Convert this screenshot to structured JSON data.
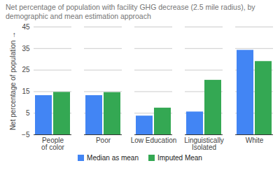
{
  "chart_data": {
    "type": "bar",
    "title": "Net percentage of population with facility GHG decrease (2.5 mile radius), by demographic and mean estimation approach",
    "y_label": "Net percentage of population",
    "categories": [
      "People of color",
      "Poor",
      "Low Education",
      "Linguistically Isolated",
      "White"
    ],
    "series": [
      {
        "name": "Median as mean",
        "color": "#4285f4",
        "values": [
          13.2,
          13.2,
          3.7,
          5.6,
          34.2
        ]
      },
      {
        "name": "Imputed Mean",
        "color": "#34a853",
        "values": [
          14.7,
          14.6,
          7.4,
          20.3,
          29.0
        ]
      }
    ],
    "ylim": [
      -5,
      45
    ],
    "yticks": [
      -5,
      5,
      15,
      25,
      35,
      45
    ],
    "grid": true,
    "legend": "bottom"
  }
}
